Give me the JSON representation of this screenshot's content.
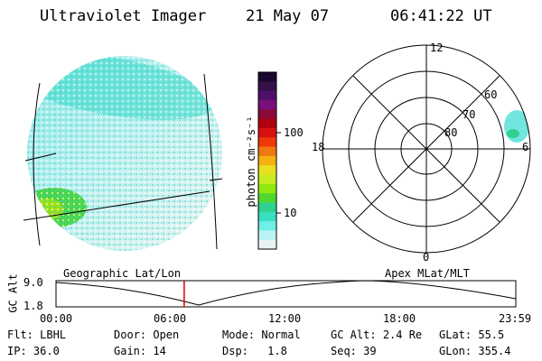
{
  "header": {
    "title": "Ultraviolet Imager",
    "date": "21 May 07",
    "time": "06:41:22 UT"
  },
  "colorbar": {
    "unit_label": "photon cm⁻²s⁻¹",
    "ticks": [
      {
        "label": "100",
        "value": 100
      },
      {
        "label": "10",
        "value": 10
      }
    ],
    "colors": [
      "#1a0830",
      "#35104a",
      "#50106a",
      "#7a0f7a",
      "#8c0a3a",
      "#b00010",
      "#d81010",
      "#f03808",
      "#f07810",
      "#f5b010",
      "#e8e020",
      "#c8ec20",
      "#90e810",
      "#50d830",
      "#30d090",
      "#38e0c0",
      "#70eee8",
      "#b8f4f4",
      "#e8f4f4"
    ]
  },
  "polar_plot": {
    "hour_labels": [
      {
        "label": "12",
        "name": "polar-label-12"
      },
      {
        "label": "18",
        "name": "polar-label-18"
      },
      {
        "label": "6",
        "name": "polar-label-6"
      },
      {
        "label": "0",
        "name": "polar-label-0"
      }
    ],
    "lat_labels": [
      {
        "label": "60",
        "name": "polar-label-60"
      },
      {
        "label": "70",
        "name": "polar-label-70"
      },
      {
        "label": "80",
        "name": "polar-label-80"
      }
    ]
  },
  "timeline": {
    "left_caption": "Geographic Lat/Lon",
    "right_caption": "Apex MLat/MLT",
    "y_axis_label": "GC Alt",
    "y_ticks": [
      "9.0",
      "1.8"
    ],
    "x_ticks": [
      "00:00",
      "06:00",
      "12:00",
      "18:00",
      "23:59"
    ],
    "current_time_hours": 6.689
  },
  "info": {
    "flt_label": "Flt:",
    "flt_value": "LBHL",
    "ip_label": "IP:",
    "ip_value": "36.0",
    "door_label": "Door:",
    "door_value": "Open",
    "gain_label": "Gain:",
    "gain_value": "14",
    "mode_label": "Mode:",
    "mode_value": "Normal",
    "dsp_label": "Dsp:",
    "dsp_value": "1.8",
    "gcalt_label": "GC Alt:",
    "gcalt_value": "2.4 Re",
    "seq_label": "Seq:",
    "seq_value": "39",
    "glat_label": "GLat:",
    "glat_value": "55.5",
    "glon_label": "GLon:",
    "glon_value": "355.4"
  }
}
